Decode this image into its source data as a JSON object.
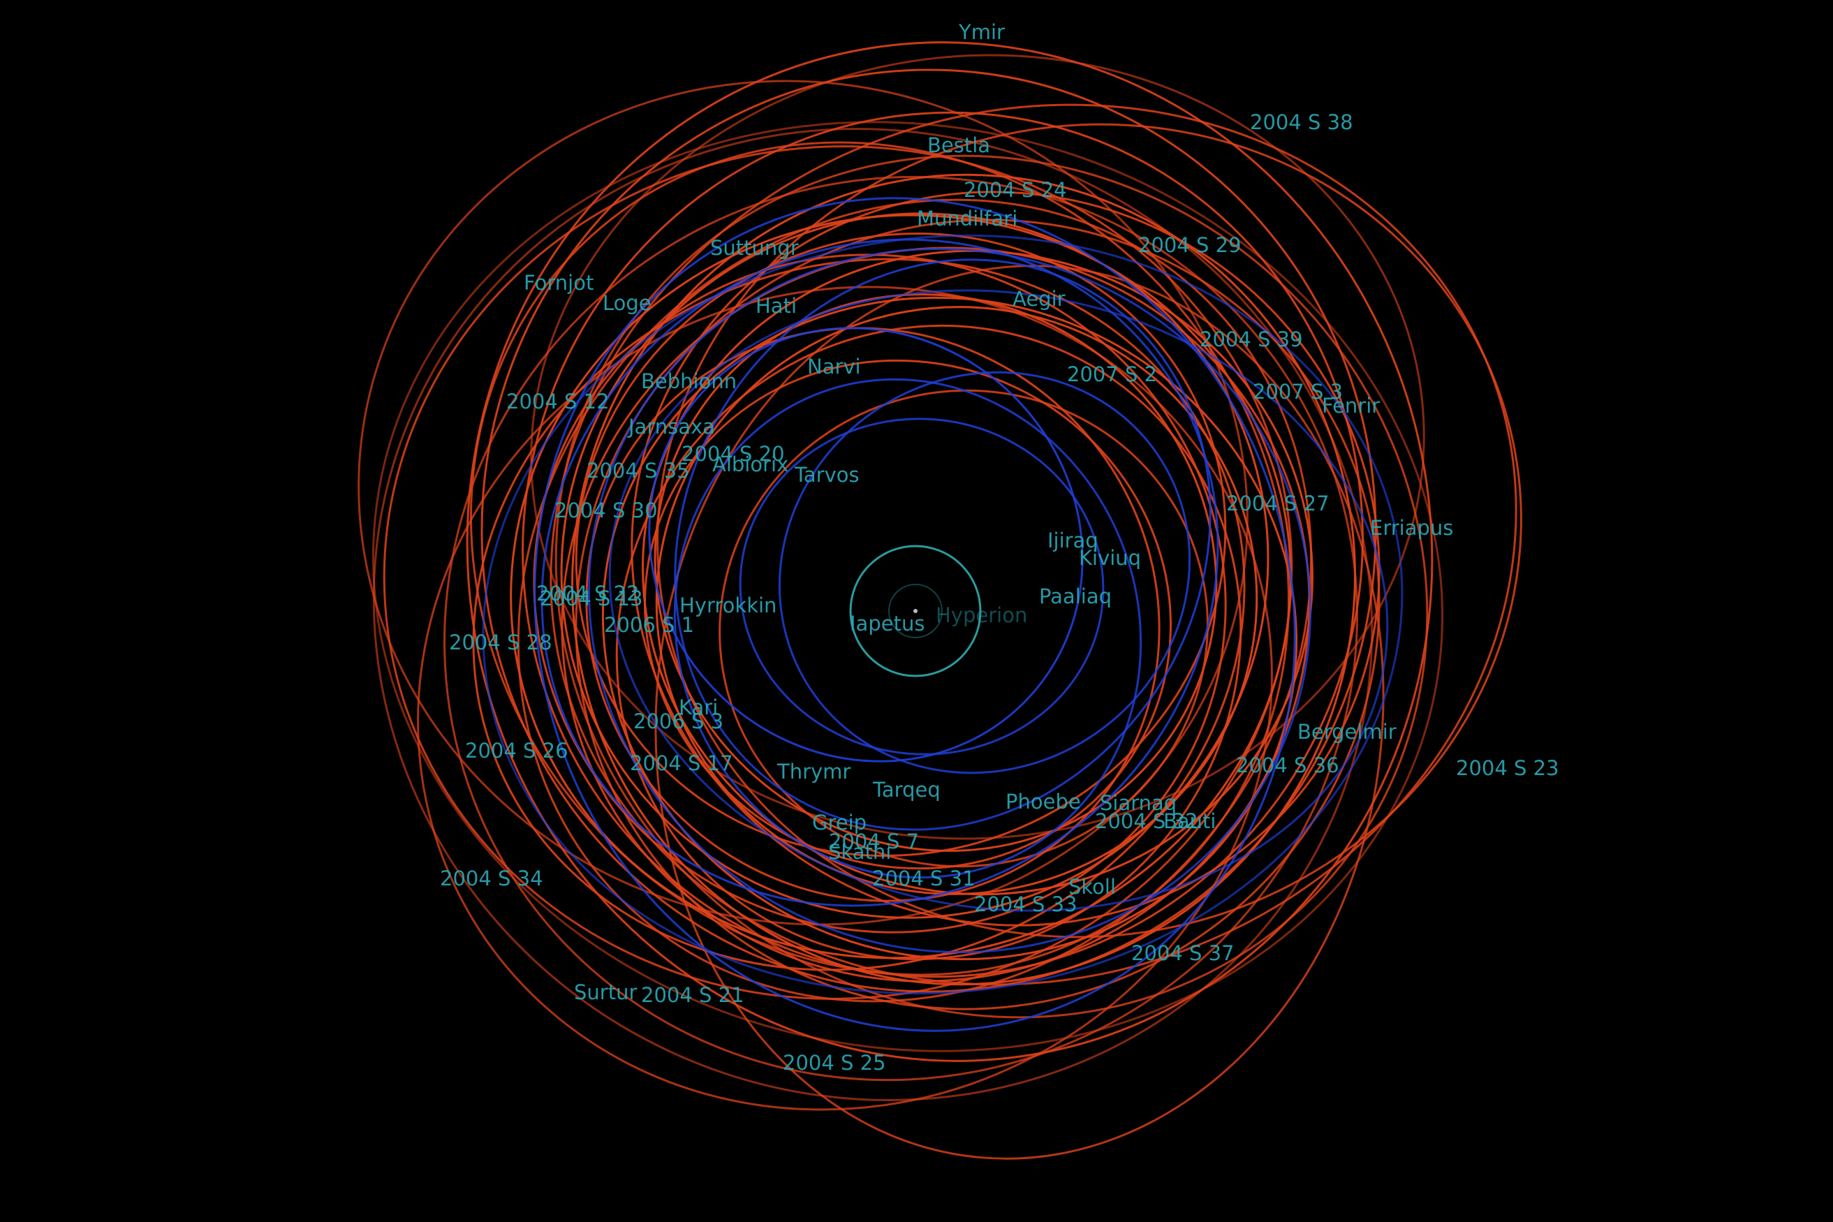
{
  "colors": {
    "background": "#000000",
    "retrograde_orbit": "#e0431a",
    "prograde_orbit": "#1f3fd8",
    "inner_orbit": "#2a9c9e",
    "label": "#2aa6b3"
  },
  "labels": {
    "ymir": "Ymir",
    "s2004_38": "2004 S 38",
    "bestla": "Bestla",
    "s2004_24": "2004 S 24",
    "mundilfari": "Mundilfari",
    "suttungr": "Suttungr",
    "s2004_29": "2004 S 29",
    "fornjot": "Fornjot",
    "loge": "Loge",
    "hati": "Hati",
    "aegir": "Aegir",
    "s2004_39": "2004 S 39",
    "bebhionn": "Bebhionn",
    "narvi": "Narvi",
    "s2007_2": "2007 S 2",
    "s2007_3": "2007 S 3",
    "fenrir": "Fenrir",
    "s2004_12": "2004 S 12",
    "jarnsaxa": "Jarnsaxa",
    "s2004_20": "2004 S 20",
    "albiorix": "Albiorix",
    "s2004_35": "2004 S 35",
    "tarvos": "Tarvos",
    "s2004_27": "2004 S 27",
    "s2004_30": "2004 S 30",
    "erriapus": "Erriapus",
    "ijiraq": "Ijiraq",
    "kiviuq": "Kiviuq",
    "s2004_22": "2004 S 22",
    "s2004_13": "2004 S 13",
    "hyrrokkin": "Hyrrokkin",
    "paaliaq": "Paaliaq",
    "iapetus": "Iapetus",
    "hyperion": "Hyperion",
    "s2006_1": "2006 S 1",
    "s2004_28": "2004 S 28",
    "kari": "Kari",
    "s2006_3": "2006 S 3",
    "bergelmir": "Bergelmir",
    "s2004_26": "2004 S 26",
    "s2004_17": "2004 S 17",
    "thrymr": "Thrymr",
    "s2004_36": "2004 S 36",
    "s2004_23": "2004 S 23",
    "tarqeq": "Tarqeq",
    "phoebe": "Phoebe",
    "siarnaq": "Siarnaq",
    "s2004_32": "2004 S 32",
    "bauti": "Bauti",
    "greip": "Greip",
    "s2004_7": "2004 S 7",
    "skathi": "Skathi",
    "s2004_31": "2004 S 31",
    "skoll": "Skoll",
    "s2004_33": "2004 S 33",
    "s2004_34": "2004 S 34",
    "s2004_37": "2004 S 37",
    "surtur": "Surtur",
    "s2004_21": "2004 S 21",
    "s2004_25": "2004 S 25"
  }
}
